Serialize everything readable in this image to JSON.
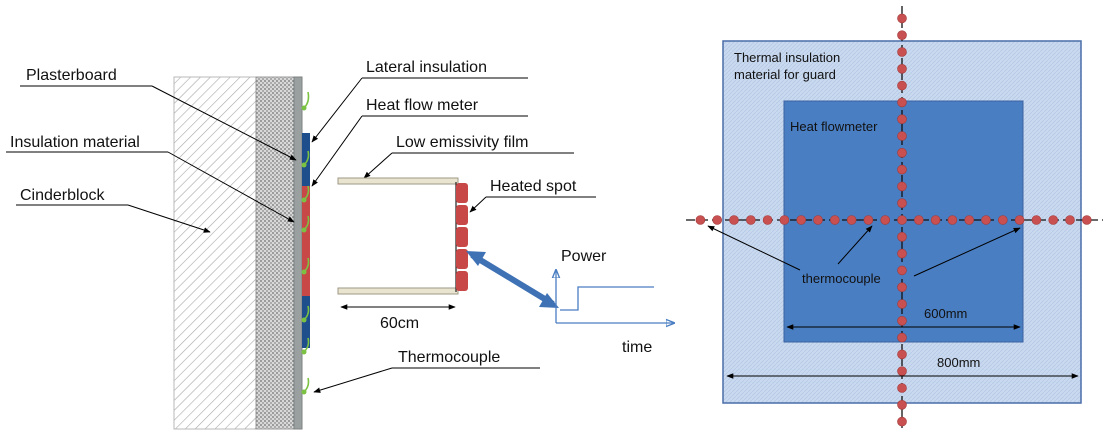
{
  "left_diagram": {
    "labels": {
      "plasterboard": "Plasterboard",
      "insulation_material": "Insulation material",
      "cinderblock": "Cinderblock",
      "lateral_insulation": "Lateral insulation",
      "heat_flow_meter": "Heat flow meter",
      "low_emissivity_film": "Low emissivity film",
      "heated_spot": "Heated spot",
      "thermocouple": "Thermocouple",
      "dimension": "60cm"
    },
    "power_graph": {
      "ylabel": "Power",
      "xlabel": "time"
    }
  },
  "right_diagram": {
    "labels": {
      "guard_line1": "Thermal insulation",
      "guard_line2": "material for guard",
      "heat_flowmeter": "Heat flowmeter",
      "thermocouple": "thermocouple",
      "inner_dimension": "600mm",
      "outer_dimension": "800mm"
    }
  },
  "colors": {
    "wall_face": "#9aa0a0",
    "heat_flow_meter": "#1f4e8c",
    "heated_spot": "#c84848",
    "film": "#e8e4d0",
    "arrow": "#3f72b5",
    "guard_fill": "#c8d8ee",
    "guard_stroke": "#4a6da8",
    "flowmeter_fill": "#4a7ec2",
    "thermocouple_dot": "#c85050",
    "thermocouple_green": "#7cc242"
  }
}
